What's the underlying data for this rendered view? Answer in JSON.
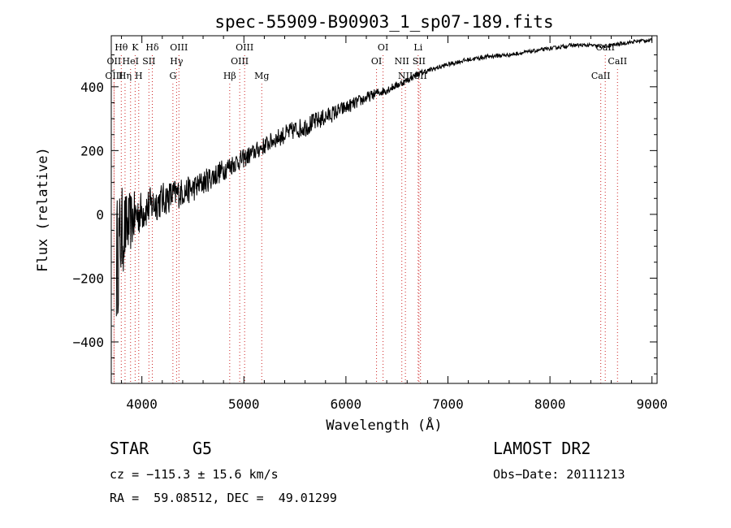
{
  "chart_data": {
    "type": "line",
    "title": "spec-55909-B90903_1_sp07-189.fits",
    "xlabel": "Wavelength (Å)",
    "ylabel": "Flux (relative)",
    "xlim": [
      3700,
      9050
    ],
    "ylim": [
      -530,
      560
    ],
    "x_ticks": [
      4000,
      5000,
      6000,
      7000,
      8000,
      9000
    ],
    "y_ticks": [
      -400,
      -200,
      0,
      200,
      400
    ],
    "grid": false,
    "line_color": "#000000",
    "marker_color": "#cc2222",
    "spectrum": {
      "x": [
        3750,
        3800,
        3850,
        3900,
        3950,
        4000,
        4100,
        4200,
        4300,
        4400,
        4500,
        4600,
        4700,
        4800,
        4900,
        5000,
        5100,
        5200,
        5300,
        5400,
        5500,
        5600,
        5700,
        5800,
        5900,
        6000,
        6100,
        6200,
        6300,
        6400,
        6500,
        6600,
        6700,
        6800,
        6900,
        7000,
        7100,
        7200,
        7300,
        7400,
        7500,
        7600,
        7700,
        7800,
        7900,
        8000,
        8100,
        8200,
        8300,
        8400,
        8500,
        8600,
        8700,
        8800,
        8900,
        9000
      ],
      "y": [
        -150,
        -60,
        -40,
        -20,
        0,
        10,
        30,
        45,
        60,
        70,
        80,
        100,
        120,
        140,
        160,
        175,
        195,
        215,
        235,
        250,
        265,
        275,
        290,
        305,
        320,
        335,
        350,
        365,
        380,
        390,
        405,
        420,
        440,
        450,
        460,
        470,
        478,
        485,
        490,
        495,
        498,
        500,
        505,
        510,
        515,
        520,
        525,
        530,
        530,
        530,
        525,
        530,
        535,
        540,
        545,
        545
      ],
      "noise": [
        210,
        150,
        110,
        90,
        75,
        65,
        60,
        55,
        50,
        45,
        42,
        40,
        38,
        35,
        32,
        30,
        28,
        28,
        28,
        30,
        30,
        32,
        30,
        28,
        25,
        22,
        20,
        18,
        15,
        14,
        12,
        10,
        10,
        8,
        8,
        7,
        7,
        7,
        7,
        7,
        7,
        6,
        6,
        6,
        6,
        6,
        6,
        6,
        6,
        6,
        6,
        6,
        6,
        6,
        6,
        6
      ]
    },
    "spectral_lines": [
      {
        "label": "Hθ",
        "x": 3798,
        "row": 1
      },
      {
        "label": "OII",
        "x": 3727,
        "row": 2
      },
      {
        "label": "OIII",
        "x": 3727,
        "row": 3
      },
      {
        "label": "K",
        "x": 3934,
        "row": 1
      },
      {
        "label": "HeI",
        "x": 3889,
        "row": 2
      },
      {
        "label": "Hη",
        "x": 3835,
        "row": 3
      },
      {
        "label": "Hδ",
        "x": 4102,
        "row": 1
      },
      {
        "label": "SII",
        "x": 4069,
        "row": 2
      },
      {
        "label": "H",
        "x": 3969,
        "row": 3
      },
      {
        "label": "OIII",
        "x": 4363,
        "row": 1
      },
      {
        "label": "Hγ",
        "x": 4340,
        "row": 2
      },
      {
        "label": "G",
        "x": 4304,
        "row": 3
      },
      {
        "label": "OIII",
        "x": 5007,
        "row": 1
      },
      {
        "label": "OIII",
        "x": 4959,
        "row": 2
      },
      {
        "label": "Hβ",
        "x": 4861,
        "row": 3
      },
      {
        "label": "Mg",
        "x": 5175,
        "row": 3
      },
      {
        "label": "OI",
        "x": 6364,
        "row": 1
      },
      {
        "label": "OI",
        "x": 6300,
        "row": 2
      },
      {
        "label": "Li",
        "x": 6708,
        "row": 1
      },
      {
        "label": "NII",
        "x": 6548,
        "row": 2
      },
      {
        "label": "SII",
        "x": 6716,
        "row": 2
      },
      {
        "label": "NII",
        "x": 6583,
        "row": 3
      },
      {
        "label": "SII",
        "x": 6731,
        "row": 3
      },
      {
        "label": "CaII",
        "x": 8542,
        "row": 1
      },
      {
        "label": "CaII",
        "x": 8662,
        "row": 2
      },
      {
        "label": "CaII",
        "x": 8498,
        "row": 3
      }
    ]
  },
  "info": {
    "object_class": "STAR",
    "subclass": "G5",
    "survey": "LAMOST DR2",
    "redshift": "cz = −115.3 ± 15.6 km/s",
    "obs_date": "Obs−Date: 20111213",
    "coords": "RA =  59.08512, DEC =  49.01299"
  }
}
